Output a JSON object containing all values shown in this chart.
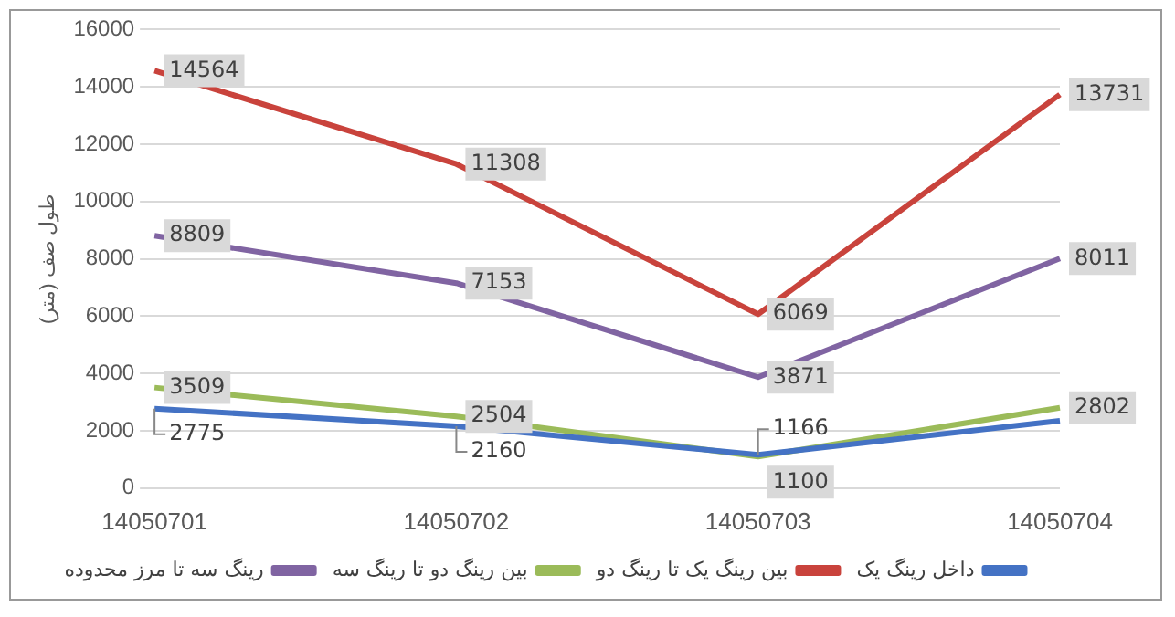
{
  "chart_data": {
    "type": "line",
    "ylabel": "طول صف (متر)",
    "categories": [
      "14050701",
      "14050702",
      "14050703",
      "14050704"
    ],
    "ylim": [
      0,
      16000
    ],
    "yticks": [
      0,
      2000,
      4000,
      6000,
      8000,
      10000,
      12000,
      14000,
      16000
    ],
    "grid": "y",
    "legend": "bottom",
    "marker": "none",
    "line_style": "solid",
    "series": [
      {
        "name": "داخل رینگ یک",
        "color": "#4472c4",
        "values": [
          2775,
          2160,
          1166,
          2350
        ],
        "value_labels": [
          "2775",
          "2160",
          "1166",
          null
        ]
      },
      {
        "name": "بین رینگ یک تا رینگ دو",
        "color": "#c9433c",
        "values": [
          14564,
          11308,
          6069,
          13731
        ],
        "value_labels": [
          "14564",
          "11308",
          "6069",
          "13731"
        ]
      },
      {
        "name": "بین رینگ دو تا رینگ سه",
        "color": "#9bbb59",
        "values": [
          3509,
          2504,
          1100,
          2802
        ],
        "value_labels": [
          "3509",
          "2504",
          "1100",
          "2802"
        ]
      },
      {
        "name": "رینگ سه تا مرز محدوده",
        "color": "#8064a2",
        "values": [
          8809,
          7153,
          3871,
          8011
        ],
        "value_labels": [
          "8809",
          "7153",
          "3871",
          "8011"
        ]
      }
    ]
  }
}
